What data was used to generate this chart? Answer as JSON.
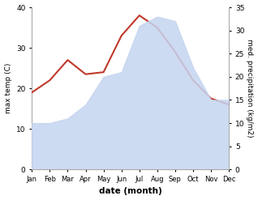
{
  "months": [
    "Jan",
    "Feb",
    "Mar",
    "Apr",
    "May",
    "Jun",
    "Jul",
    "Aug",
    "Sep",
    "Oct",
    "Nov",
    "Dec"
  ],
  "max_temp": [
    19,
    22,
    27,
    23.5,
    24,
    33,
    38,
    35,
    29,
    22,
    17.5,
    16
  ],
  "med_precip": [
    10,
    10,
    11,
    14,
    20,
    21,
    31,
    33,
    32,
    22,
    15,
    15
  ],
  "temp_color": "#c0392b",
  "precip_color": "#c5d5f0",
  "temp_ylim": [
    0,
    40
  ],
  "precip_ylim": [
    0,
    35
  ],
  "temp_yticks": [
    0,
    10,
    20,
    30,
    40
  ],
  "precip_yticks": [
    0,
    5,
    10,
    15,
    20,
    25,
    30,
    35
  ],
  "xlabel": "date (month)",
  "ylabel_left": "max temp (C)",
  "ylabel_right": "med. precipitation (kg/m2)",
  "background_color": "#ffffff"
}
